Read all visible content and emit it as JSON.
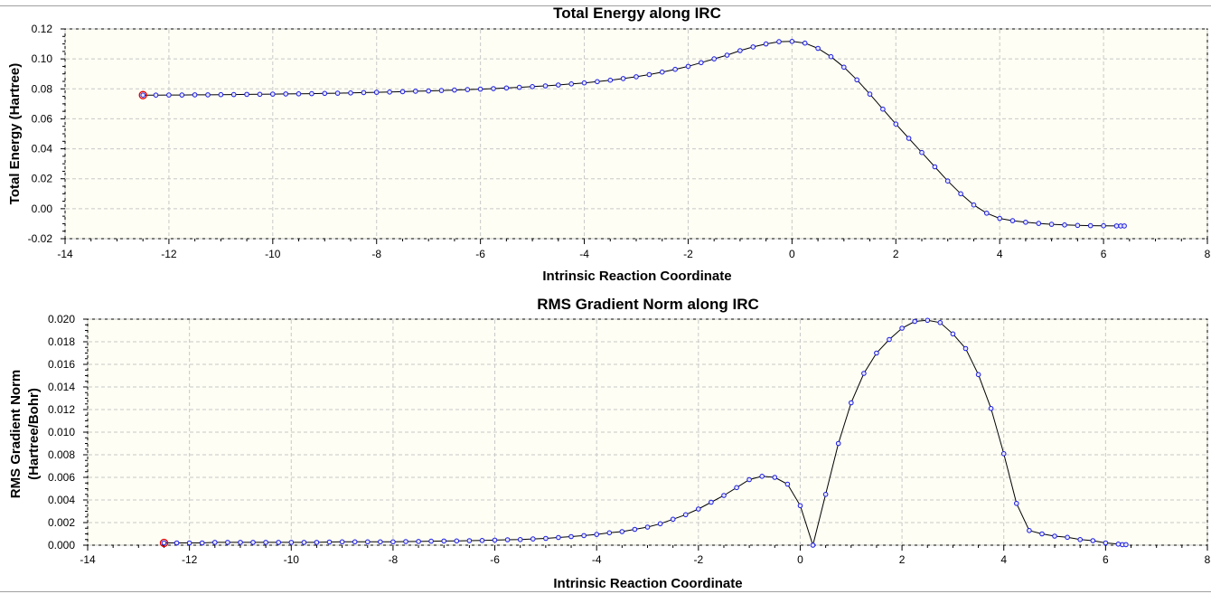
{
  "chart_data": [
    {
      "type": "line",
      "title": "Total Energy along IRC",
      "xlabel": "Intrinsic Reaction Coordinate",
      "ylabel": [
        "Total Energy (Hartree)"
      ],
      "xlim": [
        -14,
        8
      ],
      "ylim": [
        -0.02,
        0.12
      ],
      "xticks": [
        -14,
        -12,
        -10,
        -8,
        -6,
        -4,
        -2,
        0,
        2,
        4,
        6,
        8
      ],
      "yticks": [
        "0.12",
        "0.10",
        "0.08",
        "0.06",
        "0.04",
        "0.02",
        "0.00",
        "-0.02"
      ],
      "yticks_values": [
        0.12,
        0.1,
        0.08,
        0.06,
        0.04,
        0.02,
        0.0,
        -0.02
      ],
      "grid": true,
      "highlight_x": -12.5,
      "series": [
        {
          "x": [
            -12.5,
            -12.25,
            -12.0,
            -11.75,
            -11.5,
            -11.25,
            -11.0,
            -10.75,
            -10.5,
            -10.25,
            -10.0,
            -9.75,
            -9.5,
            -9.25,
            -9.0,
            -8.75,
            -8.5,
            -8.25,
            -8.0,
            -7.75,
            -7.5,
            -7.25,
            -7.0,
            -6.75,
            -6.5,
            -6.25,
            -6.0,
            -5.75,
            -5.5,
            -5.25,
            -5.0,
            -4.75,
            -4.5,
            -4.25,
            -4.0,
            -3.75,
            -3.5,
            -3.25,
            -3.0,
            -2.75,
            -2.5,
            -2.25,
            -2.0,
            -1.75,
            -1.5,
            -1.25,
            -1.0,
            -0.75,
            -0.5,
            -0.25,
            0.0,
            0.25,
            0.5,
            0.75,
            1.0,
            1.25,
            1.5,
            1.75,
            2.0,
            2.25,
            2.5,
            2.75,
            3.0,
            3.25,
            3.5,
            3.75,
            4.0,
            4.25,
            4.5,
            4.75,
            5.0,
            5.25,
            5.5,
            5.75,
            6.0,
            6.25,
            6.33,
            6.4
          ],
          "y": [
            0.0758,
            0.0758,
            0.0759,
            0.0759,
            0.076,
            0.076,
            0.0761,
            0.0762,
            0.0763,
            0.0764,
            0.0765,
            0.0766,
            0.0767,
            0.0768,
            0.077,
            0.0771,
            0.0773,
            0.0775,
            0.0777,
            0.0779,
            0.0781,
            0.0784,
            0.0786,
            0.0789,
            0.0792,
            0.0795,
            0.0798,
            0.0802,
            0.0806,
            0.081,
            0.0815,
            0.082,
            0.0826,
            0.0833,
            0.084,
            0.0848,
            0.0858,
            0.0869,
            0.0881,
            0.0895,
            0.0912,
            0.093,
            0.095,
            0.0975,
            0.1,
            0.1025,
            0.1055,
            0.108,
            0.11,
            0.1115,
            0.1117,
            0.1105,
            0.107,
            0.1015,
            0.0945,
            0.086,
            0.0765,
            0.0665,
            0.0565,
            0.047,
            0.0375,
            0.028,
            0.0185,
            0.01,
            0.0025,
            -0.003,
            -0.0065,
            -0.008,
            -0.009,
            -0.0098,
            -0.0104,
            -0.0108,
            -0.0111,
            -0.0113,
            -0.0114,
            -0.0115,
            -0.0115,
            -0.0115
          ]
        }
      ]
    },
    {
      "type": "line",
      "title": "RMS Gradient Norm along IRC",
      "xlabel": "Intrinsic Reaction Coordinate",
      "ylabel": [
        "RMS Gradient Norm",
        "(Hartree/Bohr)"
      ],
      "xlim": [
        -14,
        8
      ],
      "ylim": [
        0,
        0.02
      ],
      "xticks": [
        -14,
        -12,
        -10,
        -8,
        -6,
        -4,
        -2,
        0,
        2,
        4,
        6,
        8
      ],
      "yticks": [
        "0.020",
        "0.018",
        "0.016",
        "0.014",
        "0.012",
        "0.010",
        "0.008",
        "0.006",
        "0.004",
        "0.002",
        "0.000"
      ],
      "yticks_values": [
        0.02,
        0.018,
        0.016,
        0.014,
        0.012,
        0.01,
        0.008,
        0.006,
        0.004,
        0.002,
        0.0
      ],
      "grid": true,
      "highlight_x": -12.5,
      "series": [
        {
          "x": [
            -12.5,
            -12.25,
            -12.0,
            -11.75,
            -11.5,
            -11.25,
            -11.0,
            -10.75,
            -10.5,
            -10.25,
            -10.0,
            -9.75,
            -9.5,
            -9.25,
            -9.0,
            -8.75,
            -8.5,
            -8.25,
            -8.0,
            -7.75,
            -7.5,
            -7.25,
            -7.0,
            -6.75,
            -6.5,
            -6.25,
            -6.0,
            -5.75,
            -5.5,
            -5.25,
            -5.0,
            -4.75,
            -4.5,
            -4.25,
            -4.0,
            -3.75,
            -3.5,
            -3.25,
            -3.0,
            -2.75,
            -2.5,
            -2.25,
            -2.0,
            -1.75,
            -1.5,
            -1.25,
            -1.0,
            -0.75,
            -0.5,
            -0.25,
            0.0,
            0.25,
            0.5,
            0.75,
            1.0,
            1.25,
            1.5,
            1.75,
            2.0,
            2.25,
            2.5,
            2.75,
            3.0,
            3.25,
            3.5,
            3.75,
            4.0,
            4.25,
            4.5,
            4.75,
            5.0,
            5.25,
            5.5,
            5.75,
            6.0,
            6.25,
            6.33,
            6.4
          ],
          "y": [
            0.0002,
            0.0002,
            0.0002,
            0.0002,
            0.00025,
            0.00025,
            0.00025,
            0.00025,
            0.00025,
            0.00025,
            0.00025,
            0.00025,
            0.00025,
            0.00028,
            0.0003,
            0.0003,
            0.0003,
            0.0003,
            0.0003,
            0.00032,
            0.00033,
            0.00035,
            0.00037,
            0.00038,
            0.0004,
            0.00042,
            0.00045,
            0.00048,
            0.0005,
            0.00055,
            0.0006,
            0.00068,
            0.00076,
            0.00085,
            0.00095,
            0.0011,
            0.0012,
            0.0014,
            0.0016,
            0.0019,
            0.0023,
            0.0027,
            0.0032,
            0.0038,
            0.0044,
            0.0051,
            0.0058,
            0.0061,
            0.006,
            0.0054,
            0.0035,
            0.0,
            0.0045,
            0.009,
            0.0126,
            0.0152,
            0.017,
            0.0182,
            0.0192,
            0.0198,
            0.0199,
            0.0197,
            0.0187,
            0.0174,
            0.0151,
            0.0121,
            0.0081,
            0.0037,
            0.0013,
            0.001,
            0.0008,
            0.0007,
            0.0005,
            0.0004,
            0.0002,
            0.0001,
            5e-05,
            5e-05
          ]
        }
      ]
    }
  ]
}
